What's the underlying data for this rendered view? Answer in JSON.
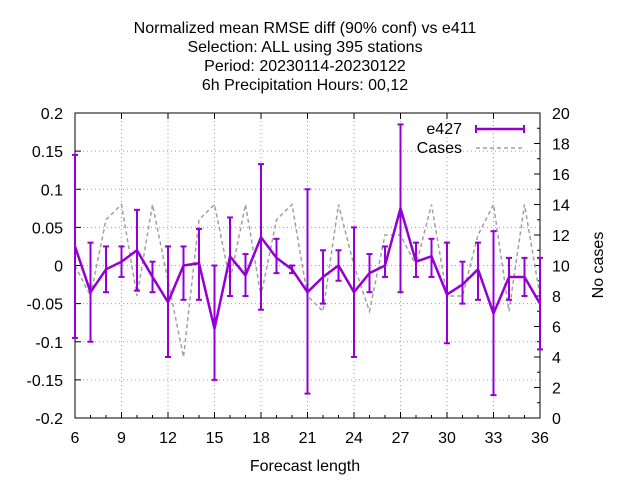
{
  "chart_data": {
    "type": "line",
    "title_lines": [
      "Normalized mean RMSE diff (90% conf) vs e411",
      "Selection: ALL using   395 stations",
      "Period: 20230114-20230122",
      "6h Precipitation   Hours:  00,12"
    ],
    "xlabel": "Forecast length",
    "ylabel": "",
    "y2label": "No cases",
    "xlim": [
      6,
      36
    ],
    "ylim": [
      -0.2,
      0.2
    ],
    "y2lim": [
      0,
      20
    ],
    "xticks": [
      6,
      9,
      12,
      15,
      18,
      21,
      24,
      27,
      30,
      33,
      36
    ],
    "yticks": [
      -0.2,
      -0.15,
      -0.1,
      -0.05,
      0,
      0.05,
      0.1,
      0.15,
      0.2
    ],
    "ytick_labels": [
      "-0.2",
      "-0.15",
      "-0.1",
      "-0.05",
      "0",
      "0.05",
      "0.1",
      "0.15",
      "0.2"
    ],
    "y2ticks": [
      0,
      2,
      4,
      6,
      8,
      10,
      12,
      14,
      16,
      18,
      20
    ],
    "grid": true,
    "legend_position": "top-right",
    "x": [
      6,
      7,
      8,
      9,
      10,
      11,
      12,
      13,
      14,
      15,
      16,
      17,
      18,
      19,
      20,
      21,
      22,
      23,
      24,
      25,
      26,
      27,
      28,
      29,
      30,
      31,
      32,
      33,
      34,
      35,
      36
    ],
    "series": [
      {
        "name": "e427",
        "color": "#9400d3",
        "axis": "y",
        "values": [
          0.025,
          -0.035,
          -0.005,
          0.005,
          0.02,
          -0.015,
          -0.048,
          0.0,
          0.003,
          -0.083,
          0.012,
          -0.013,
          0.037,
          0.01,
          -0.005,
          -0.035,
          -0.015,
          0.0,
          -0.035,
          -0.01,
          0.0,
          0.075,
          0.005,
          0.012,
          -0.038,
          -0.025,
          -0.005,
          -0.063,
          -0.015,
          -0.015,
          -0.05
        ],
        "err_low": [
          -0.095,
          -0.1,
          -0.035,
          -0.015,
          -0.033,
          -0.035,
          -0.12,
          -0.045,
          -0.045,
          -0.15,
          -0.04,
          -0.04,
          -0.058,
          -0.01,
          -0.01,
          -0.168,
          -0.05,
          -0.02,
          -0.12,
          -0.035,
          -0.015,
          -0.035,
          -0.015,
          -0.015,
          -0.102,
          -0.05,
          -0.045,
          -0.17,
          -0.045,
          -0.04,
          -0.11
        ],
        "err_high": [
          0.145,
          0.03,
          0.025,
          0.025,
          0.073,
          0.005,
          0.025,
          0.025,
          0.048,
          0.0,
          0.063,
          0.015,
          0.133,
          0.035,
          0.0,
          0.1,
          0.02,
          0.02,
          0.05,
          0.015,
          0.025,
          0.185,
          0.03,
          0.035,
          0.03,
          0.005,
          0.03,
          0.045,
          0.01,
          0.01,
          0.01
        ]
      },
      {
        "name": "Cases",
        "color": "#a0a0a0",
        "axis": "y2",
        "dashed": true,
        "values": [
          10,
          8,
          13,
          14,
          8,
          14,
          9,
          4,
          13,
          14,
          9,
          14,
          8,
          13,
          14,
          8,
          7,
          14,
          10,
          7,
          12,
          12,
          10,
          14,
          8,
          8,
          12,
          14,
          7,
          14,
          8
        ]
      }
    ]
  }
}
